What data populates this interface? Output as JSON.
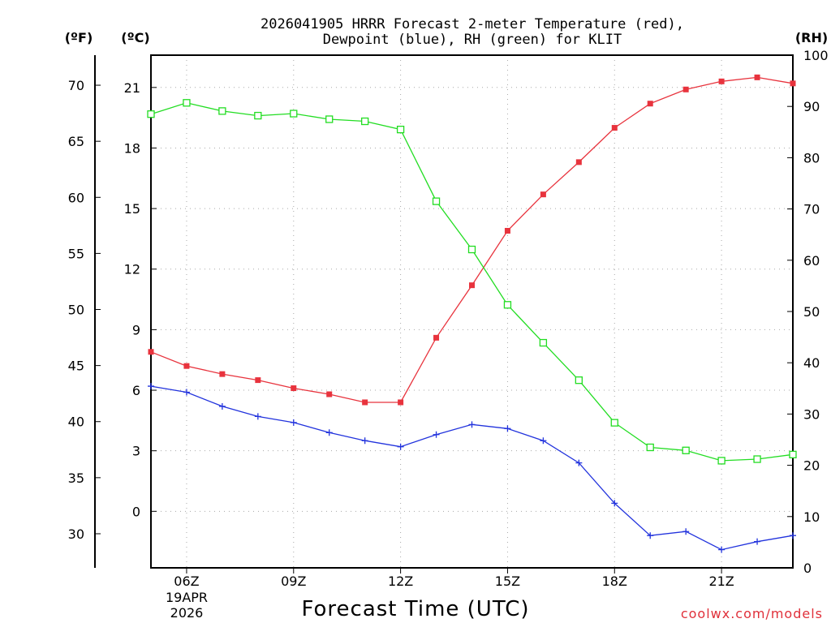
{
  "chart_data": {
    "type": "line",
    "title_line1": "2026041905 HRRR Forecast 2-meter Temperature (red),",
    "title_line2": "Dewpoint (blue), RH (green) for KLIT",
    "xlabel": "Forecast Time (UTC)",
    "credit": "coolwx.com/models",
    "x_date_line1": "19APR",
    "x_date_line2": "2026",
    "unit_f": "(ºF)",
    "unit_c": "(ºC)",
    "unit_rh": "(RH)",
    "x_hours": [
      5,
      6,
      7,
      8,
      9,
      10,
      11,
      12,
      13,
      14,
      15,
      16,
      17,
      18,
      19,
      20,
      21,
      22,
      23
    ],
    "x_range": [
      5,
      23
    ],
    "x_ticks": [
      {
        "hour": 6,
        "label": "06Z"
      },
      {
        "hour": 9,
        "label": "09Z"
      },
      {
        "hour": 12,
        "label": "12Z"
      },
      {
        "hour": 15,
        "label": "15Z"
      },
      {
        "hour": 18,
        "label": "18Z"
      },
      {
        "hour": 21,
        "label": "21Z"
      }
    ],
    "celsius_range": [
      -2.8,
      22.6
    ],
    "celsius_ticks": [
      "0",
      "3",
      "6",
      "9",
      "12",
      "15",
      "18",
      "21"
    ],
    "fahrenheit_ticks": [
      "30",
      "35",
      "40",
      "45",
      "50",
      "55",
      "60",
      "65",
      "70"
    ],
    "rh_range": [
      0,
      100
    ],
    "rh_ticks": [
      "0",
      "10",
      "20",
      "30",
      "40",
      "50",
      "60",
      "70",
      "80",
      "90",
      "100"
    ],
    "series": [
      {
        "name": "Temperature (ºC)",
        "color": "#e8333d",
        "marker": "filled-square",
        "axis": "celsius",
        "values": [
          7.9,
          7.2,
          6.8,
          6.5,
          6.1,
          5.8,
          5.4,
          5.4,
          8.6,
          11.2,
          13.9,
          15.7,
          17.3,
          19.0,
          20.2,
          20.9,
          21.3,
          21.5,
          21.2
        ]
      },
      {
        "name": "Dewpoint (ºC)",
        "color": "#2233dd",
        "marker": "plus",
        "axis": "celsius",
        "values": [
          6.2,
          5.9,
          5.2,
          4.7,
          4.4,
          3.9,
          3.5,
          3.2,
          3.8,
          4.3,
          4.1,
          3.5,
          2.4,
          0.4,
          -1.2,
          -1.0,
          -1.9,
          -1.5,
          -1.2
        ]
      },
      {
        "name": "RH (%)",
        "color": "#22dd22",
        "marker": "open-square",
        "axis": "rh",
        "values": [
          88.5,
          90.7,
          89.1,
          88.2,
          88.6,
          87.5,
          87.1,
          85.5,
          71.5,
          62.1,
          51.3,
          43.9,
          36.6,
          28.3,
          23.5,
          22.9,
          20.9,
          21.2,
          22.1
        ]
      }
    ]
  }
}
